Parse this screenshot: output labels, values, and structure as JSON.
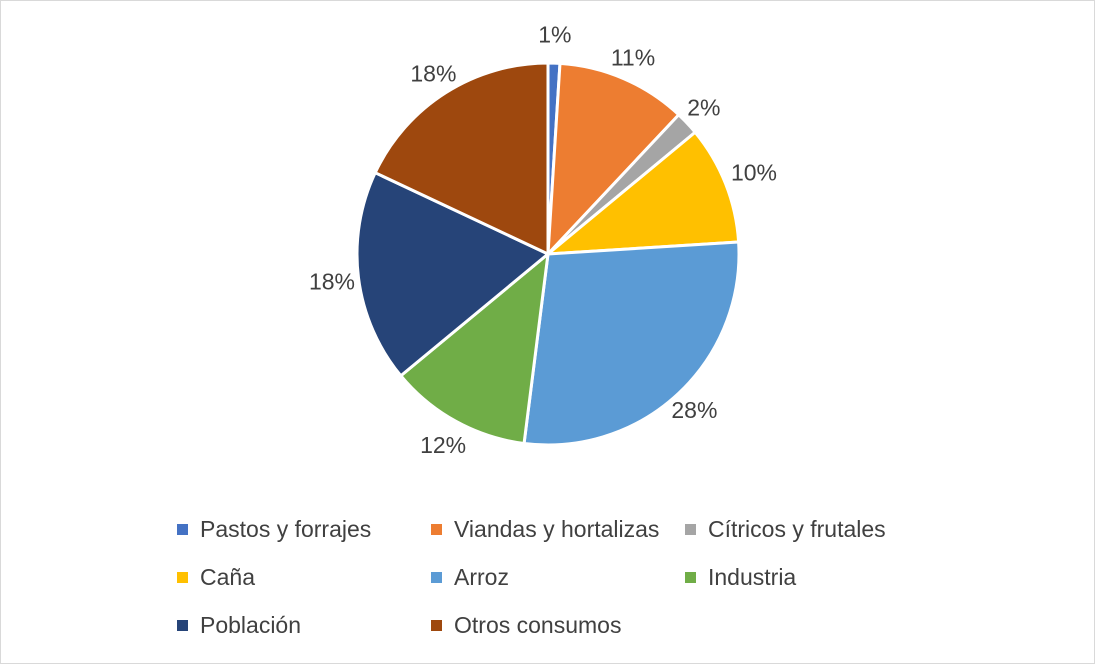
{
  "chart_data": {
    "type": "pie",
    "title": "",
    "categories": [
      "Pastos y forrajes",
      "Viandas y hortalizas",
      "Cítricos y frutales",
      "Caña",
      "Arroz",
      "Industria",
      "Población",
      "Otros consumos"
    ],
    "values": [
      1,
      11,
      2,
      10,
      28,
      12,
      18,
      18
    ],
    "labels": [
      "1%",
      "11%",
      "2%",
      "10%",
      "28%",
      "12%",
      "18%",
      "18%"
    ],
    "colors": [
      "#4472C4",
      "#ED7D31",
      "#A5A5A5",
      "#FFC000",
      "#5B9BD5",
      "#70AD47",
      "#264478",
      "#9E480E"
    ],
    "start_angle_deg": 0,
    "direction": "clockwise",
    "legend_position": "bottom"
  }
}
